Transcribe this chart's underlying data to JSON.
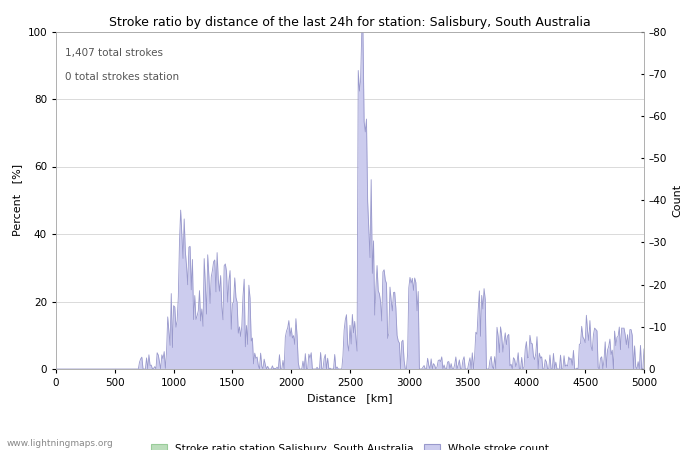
{
  "title": "Stroke ratio by distance of the last 24h for station: Salisbury, South Australia",
  "xlabel": "Distance   [km]",
  "ylabel_left": "Percent   [%]",
  "ylabel_right": "Count",
  "annotation_line1": "1,407 total strokes",
  "annotation_line2": "0 total strokes station",
  "watermark": "www.lightningmaps.org",
  "xlim": [
    0,
    5000
  ],
  "ylim_left": [
    0,
    100
  ],
  "ylim_right": [
    0,
    80
  ],
  "legend_label_green": "Stroke ratio station Salisbury, South Australia",
  "legend_label_blue": "Whole stroke count",
  "color_blue_line": "#9999cc",
  "color_blue_fill": "#ccccee",
  "color_green_fill": "#bbddbb",
  "color_green_line": "#99cc99",
  "title_fontsize": 9,
  "axis_label_fontsize": 8,
  "tick_fontsize": 7.5,
  "annotation_fontsize": 7.5,
  "watermark_fontsize": 6.5,
  "background_color": "#ffffff",
  "grid_color": "#cccccc",
  "xticks": [
    0,
    500,
    1000,
    1500,
    2000,
    2500,
    3000,
    3500,
    4000,
    4500,
    5000
  ],
  "yticks_left": [
    0,
    20,
    40,
    60,
    80,
    100
  ],
  "yticks_right": [
    0,
    10,
    20,
    30,
    40,
    50,
    60,
    70,
    80
  ]
}
